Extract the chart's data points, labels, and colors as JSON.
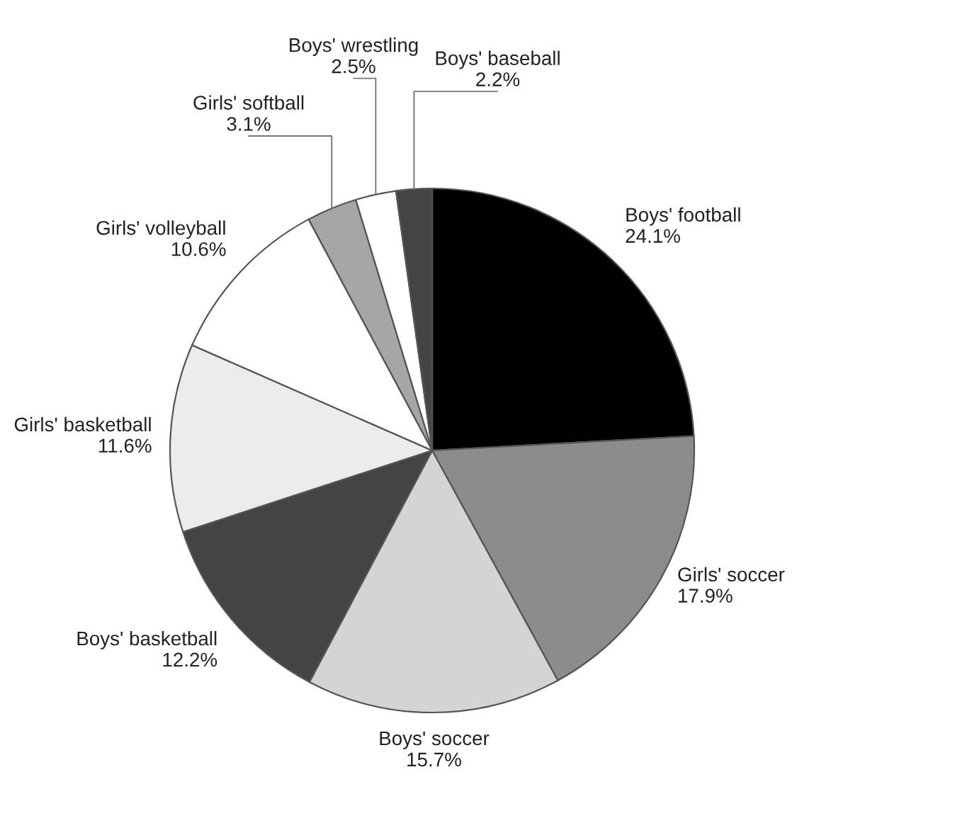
{
  "chart_data": {
    "type": "pie",
    "categories": [
      "Boys' football",
      "Girls' soccer",
      "Boys' soccer",
      "Boys' basketball",
      "Girls' basketball",
      "Girls' volleyball",
      "Girls' softball",
      "Boys' wrestling",
      "Boys' baseball"
    ],
    "values": [
      24.1,
      17.9,
      15.7,
      12.2,
      11.6,
      10.6,
      3.1,
      2.5,
      2.2
    ],
    "value_labels": [
      "24.1%",
      "17.9%",
      "15.7%",
      "12.2%",
      "11.6%",
      "10.6%",
      "3.1%",
      "2.5%",
      "2.2%"
    ],
    "colors": [
      "#000000",
      "#8c8c8c",
      "#d4d4d4",
      "#444444",
      "#ececec",
      "#ffffff",
      "#a6a6a6",
      "#ffffff",
      "#444444"
    ]
  }
}
